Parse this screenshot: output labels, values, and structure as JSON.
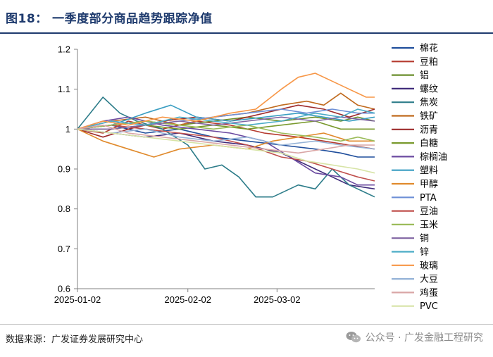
{
  "figure": {
    "title": "图18：  一季度部分商品趋势跟踪净值",
    "source": "数据来源：广发证券发展研究中心",
    "watermark": "公众号 · 广发金融工程研究"
  },
  "chart_data": {
    "type": "line",
    "title": "一季度部分商品趋势跟踪净值",
    "xlabel": "",
    "ylabel": "",
    "ylim": [
      0.6,
      1.2
    ],
    "yticks": [
      "1.2",
      "1.1",
      "1",
      "0.9",
      "0.8",
      "0.7",
      "0.6"
    ],
    "xlim": [
      0,
      70
    ],
    "xticks": [
      {
        "label": "2025-01-02",
        "x": 0
      },
      {
        "label": "2025-02-02",
        "x": 26
      },
      {
        "label": "2025-03-02",
        "x": 47
      }
    ],
    "series": [
      {
        "name": "棉花",
        "color": "#1f4e9c",
        "values": [
          [
            0,
            1.0
          ],
          [
            8,
            1.01
          ],
          [
            16,
            0.99
          ],
          [
            24,
            1.0
          ],
          [
            32,
            0.98
          ],
          [
            40,
            0.97
          ],
          [
            48,
            0.96
          ],
          [
            56,
            0.95
          ],
          [
            62,
            0.94
          ],
          [
            66,
            0.93
          ],
          [
            70,
            0.93
          ]
        ]
      },
      {
        "name": "豆粕",
        "color": "#b53a2e",
        "values": [
          [
            0,
            1.0
          ],
          [
            6,
            0.99
          ],
          [
            12,
            1.02
          ],
          [
            20,
            1.0
          ],
          [
            28,
            1.02
          ],
          [
            36,
            1.01
          ],
          [
            44,
            0.99
          ],
          [
            52,
            0.98
          ],
          [
            58,
            0.97
          ],
          [
            64,
            0.96
          ],
          [
            70,
            0.95
          ]
        ]
      },
      {
        "name": "铝",
        "color": "#6a8e2b",
        "values": [
          [
            0,
            1.0
          ],
          [
            8,
            1.01
          ],
          [
            16,
            1.02
          ],
          [
            24,
            1.01
          ],
          [
            32,
            1.02
          ],
          [
            40,
            1.03
          ],
          [
            48,
            1.02
          ],
          [
            56,
            1.03
          ],
          [
            62,
            1.02
          ],
          [
            66,
            1.03
          ],
          [
            70,
            1.02
          ]
        ]
      },
      {
        "name": "螺纹",
        "color": "#3f2b7a",
        "values": [
          [
            0,
            1.0
          ],
          [
            8,
            0.99
          ],
          [
            16,
            0.98
          ],
          [
            24,
            0.99
          ],
          [
            32,
            0.97
          ],
          [
            40,
            0.96
          ],
          [
            48,
            0.94
          ],
          [
            56,
            0.9
          ],
          [
            60,
            0.88
          ],
          [
            64,
            0.86
          ],
          [
            70,
            0.85
          ]
        ]
      },
      {
        "name": "焦炭",
        "color": "#2e7d8a",
        "values": [
          [
            0,
            1.0
          ],
          [
            3,
            1.04
          ],
          [
            6,
            1.08
          ],
          [
            10,
            1.04
          ],
          [
            14,
            1.02
          ],
          [
            20,
            1.0
          ],
          [
            26,
            0.96
          ],
          [
            30,
            0.9
          ],
          [
            34,
            0.91
          ],
          [
            38,
            0.88
          ],
          [
            42,
            0.83
          ],
          [
            46,
            0.83
          ],
          [
            52,
            0.86
          ],
          [
            56,
            0.85
          ],
          [
            60,
            0.9
          ],
          [
            64,
            0.86
          ],
          [
            68,
            0.84
          ],
          [
            70,
            0.83
          ]
        ]
      },
      {
        "name": "铁矿",
        "color": "#c06a1e",
        "values": [
          [
            0,
            1.0
          ],
          [
            8,
            1.02
          ],
          [
            16,
            1.03
          ],
          [
            24,
            1.01
          ],
          [
            32,
            1.03
          ],
          [
            40,
            1.04
          ],
          [
            48,
            1.06
          ],
          [
            54,
            1.07
          ],
          [
            58,
            1.06
          ],
          [
            62,
            1.09
          ],
          [
            66,
            1.06
          ],
          [
            70,
            1.05
          ]
        ]
      },
      {
        "name": "沥青",
        "color": "#9e2b2b",
        "values": [
          [
            0,
            1.0
          ],
          [
            6,
            0.98
          ],
          [
            12,
            1.0
          ],
          [
            20,
            1.02
          ],
          [
            28,
            1.03
          ],
          [
            36,
            1.02
          ],
          [
            44,
            1.04
          ],
          [
            52,
            1.06
          ],
          [
            58,
            1.05
          ],
          [
            64,
            1.03
          ],
          [
            70,
            1.05
          ]
        ]
      },
      {
        "name": "白糖",
        "color": "#7a9a2e",
        "values": [
          [
            0,
            1.0
          ],
          [
            8,
            1.0
          ],
          [
            16,
            1.01
          ],
          [
            24,
            1.0
          ],
          [
            32,
            1.01
          ],
          [
            40,
            1.0
          ],
          [
            48,
            1.01
          ],
          [
            56,
            1.02
          ],
          [
            62,
            1.0
          ],
          [
            70,
            1.0
          ]
        ]
      },
      {
        "name": "棕榈油",
        "color": "#6b4aa0",
        "values": [
          [
            0,
            1.0
          ],
          [
            6,
            1.02
          ],
          [
            12,
            1.03
          ],
          [
            20,
            1.01
          ],
          [
            28,
            1.0
          ],
          [
            36,
            0.99
          ],
          [
            44,
            0.97
          ],
          [
            50,
            0.93
          ],
          [
            56,
            0.89
          ],
          [
            62,
            0.88
          ],
          [
            66,
            0.86
          ],
          [
            70,
            0.86
          ]
        ]
      },
      {
        "name": "塑料",
        "color": "#3a9ec2",
        "values": [
          [
            0,
            1.0
          ],
          [
            8,
            1.01
          ],
          [
            16,
            1.04
          ],
          [
            22,
            1.06
          ],
          [
            28,
            1.03
          ],
          [
            36,
            1.02
          ],
          [
            44,
            1.03
          ],
          [
            52,
            1.04
          ],
          [
            58,
            1.03
          ],
          [
            64,
            1.02
          ],
          [
            70,
            1.03
          ]
        ]
      },
      {
        "name": "甲醇",
        "color": "#e08a2c",
        "values": [
          [
            0,
            1.0
          ],
          [
            6,
            0.97
          ],
          [
            12,
            0.95
          ],
          [
            18,
            0.93
          ],
          [
            24,
            0.95
          ],
          [
            32,
            0.96
          ],
          [
            40,
            0.95
          ],
          [
            46,
            0.97
          ],
          [
            52,
            0.98
          ],
          [
            58,
            0.99
          ],
          [
            64,
            0.97
          ],
          [
            70,
            0.97
          ]
        ]
      },
      {
        "name": "PTA",
        "color": "#6d8fd6",
        "values": [
          [
            0,
            1.0
          ],
          [
            8,
            1.02
          ],
          [
            16,
            1.01
          ],
          [
            24,
            1.02
          ],
          [
            32,
            1.03
          ],
          [
            40,
            1.04
          ],
          [
            48,
            1.05
          ],
          [
            54,
            1.04
          ],
          [
            60,
            1.05
          ],
          [
            66,
            1.04
          ],
          [
            70,
            1.04
          ]
        ]
      },
      {
        "name": "豆油",
        "color": "#c0504d",
        "values": [
          [
            0,
            1.0
          ],
          [
            8,
            1.01
          ],
          [
            16,
            1.0
          ],
          [
            24,
            0.99
          ],
          [
            32,
            0.98
          ],
          [
            40,
            0.96
          ],
          [
            48,
            0.93
          ],
          [
            54,
            0.92
          ],
          [
            60,
            0.9
          ],
          [
            66,
            0.88
          ],
          [
            70,
            0.87
          ]
        ]
      },
      {
        "name": "玉米",
        "color": "#9bbb59",
        "values": [
          [
            0,
            1.0
          ],
          [
            8,
            1.01
          ],
          [
            16,
            1.02
          ],
          [
            24,
            1.01
          ],
          [
            32,
            1.0
          ],
          [
            40,
            1.01
          ],
          [
            48,
            0.99
          ],
          [
            56,
            0.98
          ],
          [
            62,
            0.97
          ],
          [
            66,
            0.98
          ],
          [
            70,
            0.97
          ]
        ]
      },
      {
        "name": "铜",
        "color": "#8064a2",
        "values": [
          [
            0,
            1.0
          ],
          [
            8,
            1.0
          ],
          [
            16,
            1.01
          ],
          [
            24,
            1.02
          ],
          [
            32,
            1.01
          ],
          [
            40,
            1.02
          ],
          [
            48,
            1.03
          ],
          [
            56,
            1.02
          ],
          [
            62,
            1.03
          ],
          [
            70,
            1.02
          ]
        ]
      },
      {
        "name": "锌",
        "color": "#4bacc6",
        "values": [
          [
            0,
            1.0
          ],
          [
            8,
            1.02
          ],
          [
            16,
            1.01
          ],
          [
            24,
            1.03
          ],
          [
            32,
            1.02
          ],
          [
            40,
            1.01
          ],
          [
            48,
            1.02
          ],
          [
            56,
            1.04
          ],
          [
            62,
            1.03
          ],
          [
            66,
            1.05
          ],
          [
            70,
            1.04
          ]
        ]
      },
      {
        "name": "玻璃",
        "color": "#f79646",
        "values": [
          [
            0,
            1.0
          ],
          [
            6,
            1.02
          ],
          [
            12,
            1.01
          ],
          [
            20,
            1.03
          ],
          [
            28,
            1.02
          ],
          [
            36,
            1.04
          ],
          [
            42,
            1.05
          ],
          [
            48,
            1.1
          ],
          [
            52,
            1.13
          ],
          [
            56,
            1.14
          ],
          [
            60,
            1.12
          ],
          [
            64,
            1.1
          ],
          [
            68,
            1.08
          ],
          [
            70,
            1.08
          ]
        ]
      },
      {
        "name": "大豆",
        "color": "#95b3d7",
        "values": [
          [
            0,
            1.0
          ],
          [
            8,
            0.99
          ],
          [
            16,
            1.0
          ],
          [
            24,
            0.98
          ],
          [
            32,
            0.97
          ],
          [
            40,
            0.98
          ],
          [
            48,
            0.96
          ],
          [
            56,
            0.97
          ],
          [
            62,
            0.96
          ],
          [
            70,
            0.95
          ]
        ]
      },
      {
        "name": "鸡蛋",
        "color": "#d9a6a6",
        "values": [
          [
            0,
            1.0
          ],
          [
            6,
            1.01
          ],
          [
            12,
            0.99
          ],
          [
            20,
            0.98
          ],
          [
            28,
            0.97
          ],
          [
            36,
            0.96
          ],
          [
            44,
            0.95
          ],
          [
            52,
            0.94
          ],
          [
            58,
            0.95
          ],
          [
            64,
            0.96
          ],
          [
            70,
            0.96
          ]
        ]
      },
      {
        "name": "PVC",
        "color": "#d7e4a6",
        "values": [
          [
            0,
            1.0
          ],
          [
            8,
            0.99
          ],
          [
            16,
            0.98
          ],
          [
            24,
            0.97
          ],
          [
            32,
            0.96
          ],
          [
            40,
            0.95
          ],
          [
            48,
            0.94
          ],
          [
            54,
            0.92
          ],
          [
            60,
            0.91
          ],
          [
            66,
            0.9
          ],
          [
            70,
            0.89
          ]
        ]
      }
    ]
  }
}
